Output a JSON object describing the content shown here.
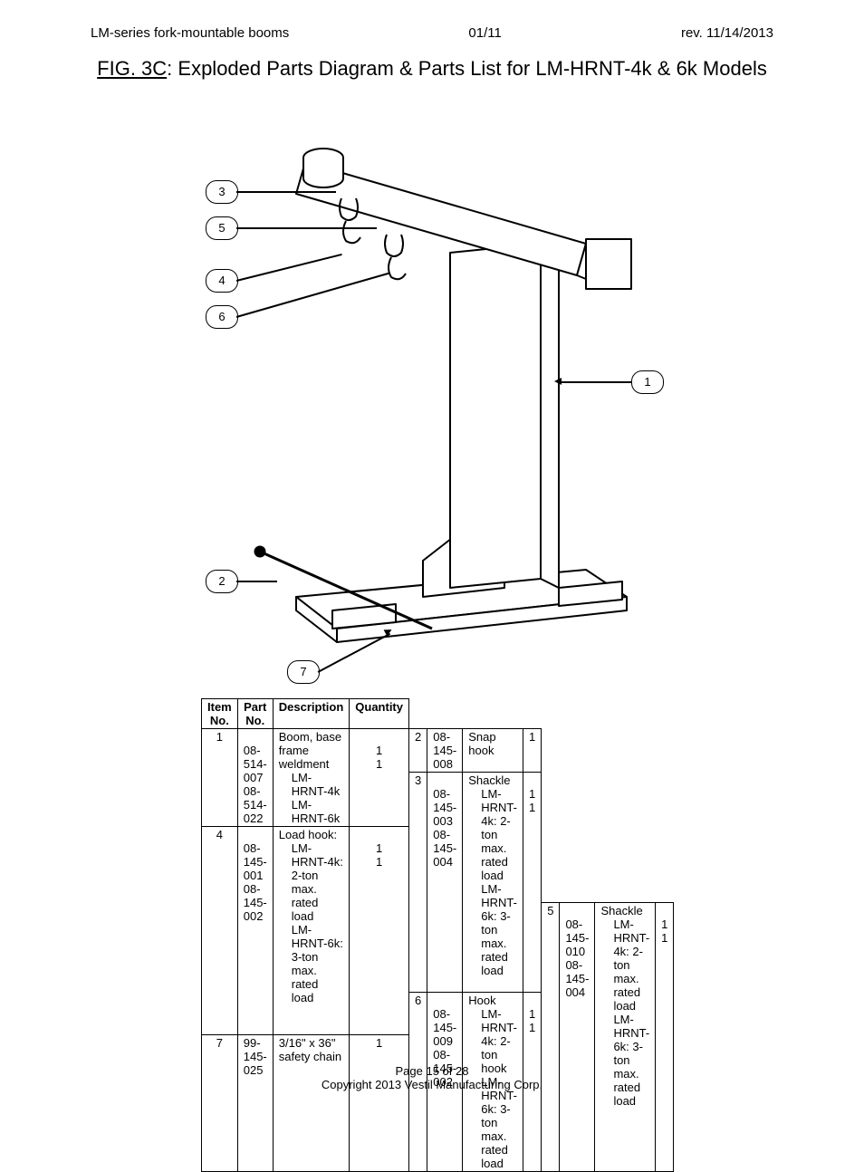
{
  "header": {
    "left": "LM-series fork-mountable booms",
    "center": "01/11",
    "right": "rev. 11/14/2013"
  },
  "title": {
    "figure": "FIG. 3C",
    "rest": ": Exploded Parts Diagram & Parts List for LM-HRNT-4k & 6k Models"
  },
  "callouts": [
    "1",
    "2",
    "3",
    "4",
    "5",
    "6",
    "7"
  ],
  "table": {
    "headers": [
      "Item No.",
      "Part No.",
      "Description",
      "Quantity"
    ],
    "rows": [
      {
        "item": "1",
        "groups": [
          {
            "part": "",
            "desc": "Boom, base frame weldment",
            "qty": ""
          },
          {
            "part": "08-514-007",
            "desc_sub": "LM-HRNT-4k",
            "qty": "1"
          },
          {
            "part": "08-514-022",
            "desc_sub": "LM-HRNT-6k",
            "qty": "1"
          }
        ]
      },
      {
        "item": "2",
        "groups": [
          {
            "part": "08-145-008",
            "desc": "Snap hook",
            "qty": "1"
          }
        ]
      },
      {
        "item": "3",
        "groups": [
          {
            "part": "",
            "desc": "Shackle",
            "qty": ""
          },
          {
            "part": "08-145-003",
            "desc_sub": "LM-HRNT-4k: 2-ton max. rated load",
            "qty": "1"
          },
          {
            "part": "08-145-004",
            "desc_sub": "LM-HRNT-6k: 3-ton max. rated load",
            "qty": "1"
          }
        ]
      },
      {
        "item": "4",
        "groups": [
          {
            "part": "",
            "desc": "Load hook:",
            "qty": ""
          },
          {
            "part": "08-145-001",
            "desc_sub": "LM-HRNT-4k: 2-ton max. rated load",
            "qty": "1"
          },
          {
            "part": "08-145-002",
            "desc_sub": "LM-HRNT-6k: 3-ton max. rated load",
            "qty": "1"
          }
        ]
      },
      {
        "item": "5",
        "groups": [
          {
            "part": "",
            "desc": "Shackle",
            "qty": ""
          },
          {
            "part": "08-145-010",
            "desc_sub": "LM-HRNT-4k: 2-ton max. rated load",
            "qty": "1"
          },
          {
            "part": "08-145-004",
            "desc_sub": "LM-HRNT-6k: 3-ton max. rated load",
            "qty": "1"
          }
        ]
      },
      {
        "item": "6",
        "groups": [
          {
            "part": "",
            "desc": "Hook",
            "qty": ""
          },
          {
            "part": "08-145-009",
            "desc_sub": "LM-HRNT-4k: 2-ton hook",
            "qty": "1"
          },
          {
            "part": "08-145-002",
            "desc_sub": "LM-HRNT-6k: 3-ton max. rated load",
            "qty": "1"
          }
        ]
      },
      {
        "item": "7",
        "groups": [
          {
            "part": "99-145-025",
            "desc": "3/16\" x 36\" safety chain",
            "qty": "1"
          }
        ]
      }
    ]
  },
  "footer": {
    "line1": "Page 15 of 28",
    "line2": "Copyright 2013 Vestil Manufacturing Corp."
  }
}
